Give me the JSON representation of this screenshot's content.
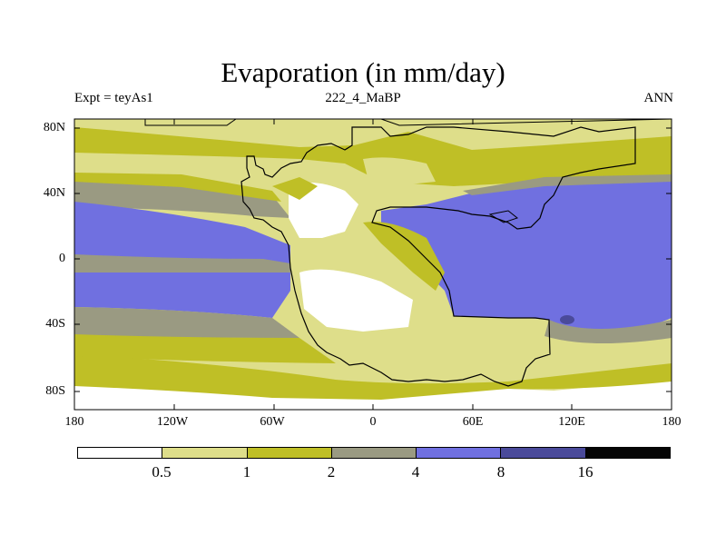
{
  "title": "Evaporation (in mm/day)",
  "subtitle_left": "Expt = teyAs1",
  "subtitle_center": "222_4_MaBP",
  "subtitle_right": "ANN",
  "y_axis_labels": [
    "80N",
    "40N",
    "0",
    "40S",
    "80S"
  ],
  "x_axis_labels": [
    "180",
    "120W",
    "60W",
    "0",
    "60E",
    "120E",
    "180"
  ],
  "colorbar": {
    "colors": [
      "#ffffff",
      "#dede8a",
      "#bfbf26",
      "#9a9a82",
      "#7070e0",
      "#4a4a9a",
      "#050505"
    ],
    "labels": [
      "0.5",
      "1",
      "2",
      "4",
      "8",
      "16"
    ]
  },
  "legend_ranges": [
    {
      "range": "< 0.5",
      "color": "#ffffff"
    },
    {
      "range": "0.5-1",
      "color": "#dede8a"
    },
    {
      "range": "1-2",
      "color": "#bfbf26"
    },
    {
      "range": "2-4",
      "color": "#9a9a82"
    },
    {
      "range": "4-8",
      "color": "#7070e0"
    },
    {
      "range": "8-16",
      "color": "#4a4a9a"
    },
    {
      "range": "> 16",
      "color": "#050505"
    }
  ]
}
